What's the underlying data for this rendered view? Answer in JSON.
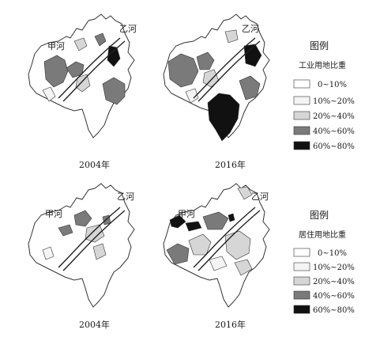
{
  "colors": {
    "class_0": "#ffffff",
    "class_1": "#f4f4f4",
    "class_2": "#d6d6d6",
    "class_3": "#7a7a7a",
    "class_4": "#111111",
    "outline": "#333333",
    "river": "#222222"
  },
  "rivers": {
    "jia": "甲河",
    "yi": "乙河"
  },
  "maps": [
    {
      "year": "2004年"
    },
    {
      "year": "2016年"
    },
    {
      "year": "2004年"
    },
    {
      "year": "2016年"
    }
  ],
  "legends": [
    {
      "heading": "图例",
      "title": "工业用地比重",
      "items": [
        "0~10%",
        "10%~20%",
        "20%~40%",
        "40%~60%",
        "60%~80%"
      ]
    },
    {
      "heading": "图例",
      "title": "居住用地比重",
      "items": [
        "0~10%",
        "10%~20%",
        "20%~40%",
        "40%~60%",
        "60%~80%"
      ]
    }
  ]
}
